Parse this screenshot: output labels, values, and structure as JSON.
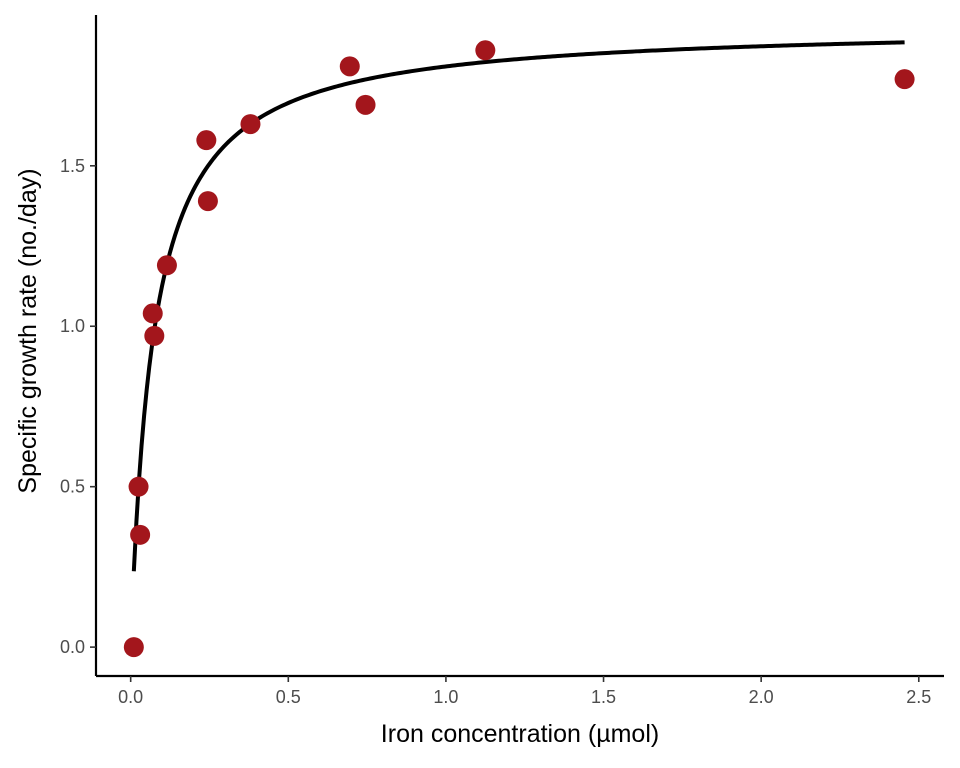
{
  "chart_data": {
    "type": "scatter",
    "title": "",
    "xlabel": "Iron concentration (µmol)",
    "ylabel": "Specific growth rate (no./day)",
    "xlim": [
      -0.11,
      2.58
    ],
    "ylim": [
      -0.09,
      1.97
    ],
    "x_ticks": [
      0.0,
      0.5,
      1.0,
      1.5,
      2.0,
      2.5
    ],
    "x_tick_labels": [
      "0.0",
      "0.5",
      "1.0",
      "1.5",
      "2.0",
      "2.5"
    ],
    "y_ticks": [
      0.0,
      0.5,
      1.0,
      1.5
    ],
    "y_tick_labels": [
      "0.0",
      "0.5",
      "1.0",
      "1.5"
    ],
    "grid": false,
    "legend": "none",
    "series": [
      {
        "type": "scatter",
        "color": "#a3161c",
        "x": [
          0.01,
          0.025,
          0.03,
          0.07,
          0.075,
          0.115,
          0.24,
          0.245,
          0.38,
          0.695,
          0.745,
          1.125,
          2.455
        ],
        "y": [
          0.0,
          0.5,
          0.35,
          1.04,
          0.97,
          1.19,
          1.58,
          1.39,
          1.63,
          1.81,
          1.69,
          1.86,
          1.77
        ]
      },
      {
        "type": "line",
        "color": "#000000",
        "model": "michaelis-menten",
        "vmax": 1.94,
        "k": 0.072,
        "x_range": [
          0.01,
          2.455
        ]
      }
    ]
  }
}
